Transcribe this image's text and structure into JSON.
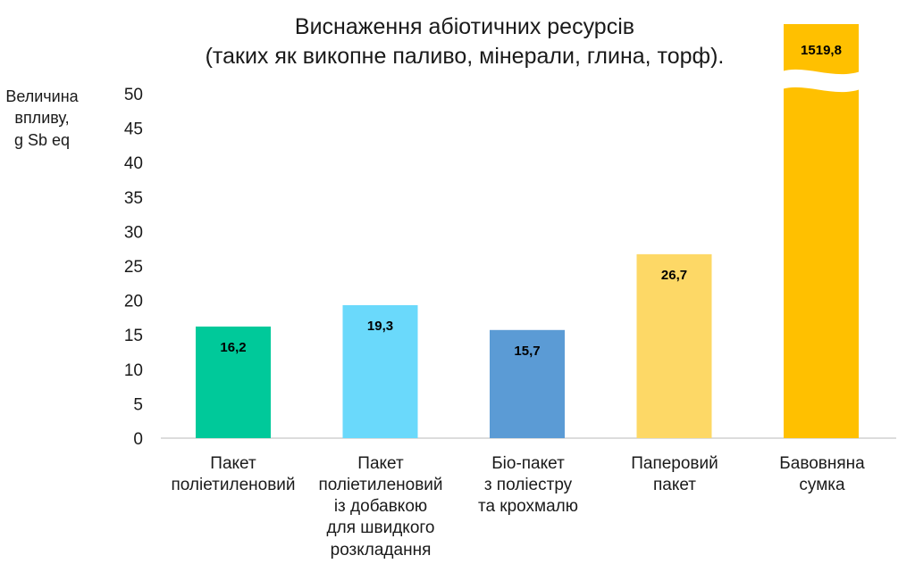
{
  "chart_data": {
    "type": "bar",
    "title_lines": [
      "Виснаження абіотичних ресурсів",
      "(таких як викопне паливо, мінерали, глина, торф)."
    ],
    "ylabel_lines": [
      "Величина",
      "впливу,",
      "g Sb eq"
    ],
    "ylim": [
      0,
      50
    ],
    "yticks": [
      0,
      5,
      10,
      15,
      20,
      25,
      30,
      35,
      40,
      45,
      50
    ],
    "grid": false,
    "legend": "none",
    "axis_break": true,
    "categories": [
      {
        "lines": [
          "Пакет",
          "поліетиленовий"
        ]
      },
      {
        "lines": [
          "Пакет",
          "поліетиленовий",
          "із добавкою",
          "для швидкого",
          "розкладання"
        ]
      },
      {
        "lines": [
          "Біо-пакет",
          "з поліестру",
          "та крохмалю"
        ]
      },
      {
        "lines": [
          "Паперовий",
          "пакет"
        ]
      },
      {
        "lines": [
          "Бавовняна",
          "сумка"
        ]
      }
    ],
    "values": [
      16.2,
      19.3,
      15.7,
      26.7,
      1519.8
    ],
    "value_labels": [
      "16,2",
      "19,3",
      "15,7",
      "26,7",
      "1519,8"
    ],
    "colors": [
      "#00c99a",
      "#6ad9fb",
      "#5b9bd5",
      "#fdd866",
      "#ffc000"
    ]
  }
}
